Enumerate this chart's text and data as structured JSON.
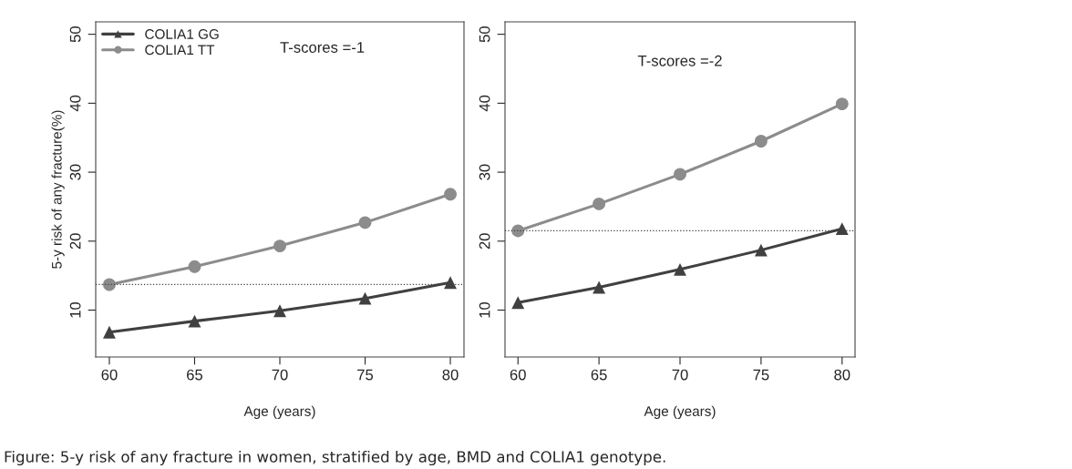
{
  "chart_data": [
    {
      "type": "line",
      "xlabel": "Age (years)",
      "ylabel": "5-y risk of any fracture(%)",
      "x": [
        60,
        65,
        70,
        75,
        80
      ],
      "series": [
        {
          "name": "COLIA1 GG",
          "color": "#404040",
          "marker": "triangle",
          "values": [
            6.8,
            8.4,
            9.9,
            11.7,
            14.0
          ]
        },
        {
          "name": "COLIA1 TT",
          "color": "#8c8c8c",
          "marker": "circle",
          "values": [
            13.7,
            16.3,
            19.3,
            22.7,
            26.8
          ]
        }
      ],
      "xlim": [
        59.2,
        80.8
      ],
      "ylim": [
        3.2,
        51.8
      ],
      "xticks": [
        60,
        65,
        70,
        75,
        80
      ],
      "yticks": [
        10,
        20,
        30,
        40,
        50
      ],
      "ref_lines": [
        {
          "axis": "y",
          "value": 13.7,
          "line_style": "dotted",
          "color": "#404040"
        }
      ],
      "annotations": [
        "T-scores =-1",
        "Figure: 5-y risk of any fracture in women, stratified by age, BMD and COLIA1 genotype."
      ],
      "legend": "top left",
      "grid": false
    },
    {
      "type": "line",
      "xlabel": "Age (years)",
      "x": [
        60,
        65,
        70,
        75,
        80
      ],
      "series": [
        {
          "color": "#404040",
          "marker": "triangle",
          "values": [
            11.1,
            13.3,
            15.9,
            18.7,
            21.8
          ]
        },
        {
          "color": "#8c8c8c",
          "marker": "circle",
          "values": [
            21.5,
            25.4,
            29.7,
            34.5,
            39.9
          ]
        }
      ],
      "xlim": [
        59.2,
        80.8
      ],
      "ylim": [
        3.2,
        51.8
      ],
      "xticks": [
        60,
        65,
        70,
        75,
        80
      ],
      "yticks": [
        10,
        20,
        30,
        40,
        50
      ],
      "ref_lines": [
        {
          "axis": "y",
          "value": 21.5,
          "line_style": "dotted",
          "color": "#404040"
        }
      ],
      "annotations": [
        "T-scores =-2"
      ],
      "grid": false
    }
  ]
}
